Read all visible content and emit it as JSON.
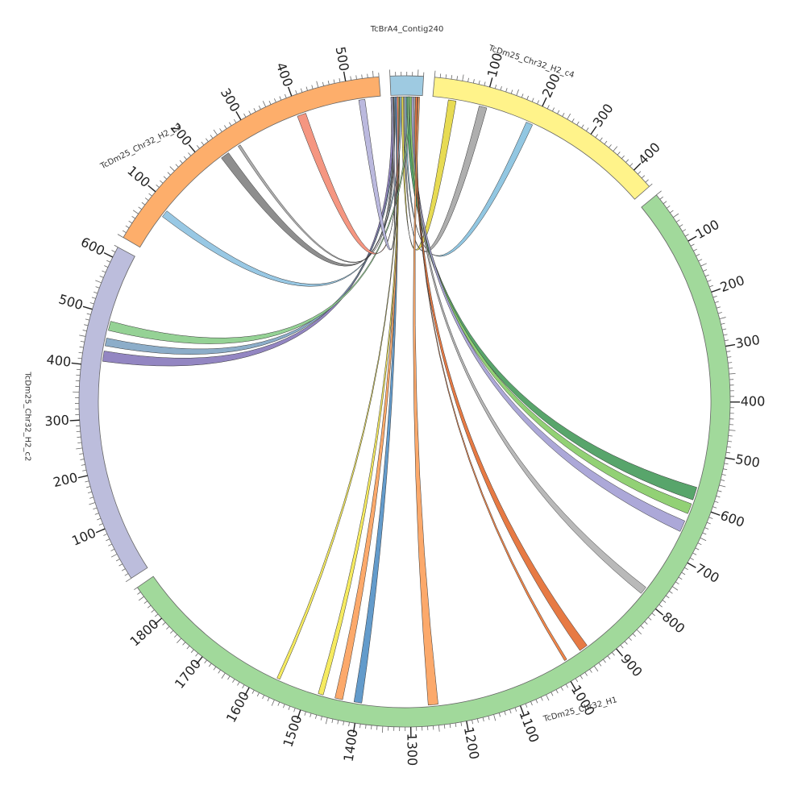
{
  "chart_data": {
    "type": "circos",
    "segments": [
      {
        "name": "TcBrA4_Contig240",
        "length": 60,
        "color": "#9ecae1",
        "label": "TcBrA4_Contig240",
        "tick_labels": []
      },
      {
        "name": "TcDm25_Chr32_H2_c4",
        "length": 440,
        "color": "#fff38a",
        "label": "TcDm25_Chr32_H2_c4",
        "tick_labels": [
          "100",
          "200",
          "300",
          "400"
        ]
      },
      {
        "name": "TcDm25_Chr32_H1",
        "length": 1870,
        "color": "#a1d99b",
        "label": "TcDm25_Chr32_H1",
        "tick_labels": [
          "100",
          "200",
          "300",
          "400",
          "500",
          "600",
          "700",
          "800",
          "900",
          "1000",
          "1100",
          "1200",
          "1300",
          "1400",
          "1500",
          "1600",
          "1700",
          "1800"
        ]
      },
      {
        "name": "TcDm25_Chr32_H2_c2",
        "length": 620,
        "color": "#bcbddc",
        "label": "TcDm25_Chr32_H2_c2",
        "tick_labels": [
          "100",
          "200",
          "300",
          "400",
          "500",
          "600"
        ]
      },
      {
        "name": "TcDm25_Chr32_H2_c3",
        "length": 560,
        "color": "#fdae6b",
        "label": "TcDm25_Chr32_H2_c3",
        "tick_labels": [
          "100",
          "200",
          "300",
          "400",
          "500"
        ]
      }
    ],
    "links": [
      {
        "src": "TcBrA4_Contig240",
        "s1": 20,
        "s2": 24,
        "dst": "TcDm25_Chr32_H2_c4",
        "d1": 30,
        "d2": 45,
        "color": "#e6d94a"
      },
      {
        "src": "TcBrA4_Contig240",
        "s1": 24,
        "s2": 27,
        "dst": "TcDm25_Chr32_H2_c4",
        "d1": 90,
        "d2": 105,
        "color": "#aaaaaa"
      },
      {
        "src": "TcBrA4_Contig240",
        "s1": 27,
        "s2": 30,
        "dst": "TcDm25_Chr32_H2_c4",
        "d1": 185,
        "d2": 198,
        "color": "#8cc4e0"
      },
      {
        "src": "TcBrA4_Contig240",
        "s1": 30,
        "s2": 36,
        "dst": "TcDm25_Chr32_H1",
        "d1": 565,
        "d2": 590,
        "color": "#4fa063"
      },
      {
        "src": "TcBrA4_Contig240",
        "s1": 36,
        "s2": 40,
        "dst": "TcDm25_Chr32_H1",
        "d1": 598,
        "d2": 618,
        "color": "#8ccf6e"
      },
      {
        "src": "TcBrA4_Contig240",
        "s1": 40,
        "s2": 44,
        "dst": "TcDm25_Chr32_H1",
        "d1": 633,
        "d2": 655,
        "color": "#a8a3d6"
      },
      {
        "src": "TcBrA4_Contig240",
        "s1": 44,
        "s2": 47,
        "dst": "TcDm25_Chr32_H1",
        "d1": 780,
        "d2": 795,
        "color": "#b5b5b5"
      },
      {
        "src": "TcBrA4_Contig240",
        "s1": 47,
        "s2": 51,
        "dst": "TcDm25_Chr32_H1",
        "d1": 938,
        "d2": 955,
        "color": "#e6733a"
      },
      {
        "src": "TcBrA4_Contig240",
        "s1": 51,
        "s2": 52,
        "dst": "TcDm25_Chr32_H1",
        "d1": 985,
        "d2": 990,
        "color": "#f08040"
      },
      {
        "src": "TcBrA4_Contig240",
        "s1": 52,
        "s2": 55,
        "dst": "TcDm25_Chr32_H1",
        "d1": 1247,
        "d2": 1266,
        "color": "#fca463"
      },
      {
        "src": "TcBrA4_Contig240",
        "s1": 8,
        "s2": 11,
        "dst": "TcDm25_Chr32_H1",
        "d1": 1393,
        "d2": 1408,
        "color": "#5b96c8"
      },
      {
        "src": "TcBrA4_Contig240",
        "s1": 11,
        "s2": 14,
        "dst": "TcDm25_Chr32_H1",
        "d1": 1430,
        "d2": 1445,
        "color": "#fca463"
      },
      {
        "src": "TcBrA4_Contig240",
        "s1": 14,
        "s2": 16,
        "dst": "TcDm25_Chr32_H1",
        "d1": 1468,
        "d2": 1478,
        "color": "#f5ea57"
      },
      {
        "src": "TcBrA4_Contig240",
        "s1": 16,
        "s2": 17,
        "dst": "TcDm25_Chr32_H1",
        "d1": 1556,
        "d2": 1562,
        "color": "#f5ea57"
      },
      {
        "src": "TcBrA4_Contig240",
        "s1": 0,
        "s2": 5,
        "dst": "TcDm25_Chr32_H2_c2",
        "d1": 410,
        "d2": 430,
        "color": "#8d7fbf"
      },
      {
        "src": "TcBrA4_Contig240",
        "s1": 5,
        "s2": 8,
        "dst": "TcDm25_Chr32_H2_c2",
        "d1": 440,
        "d2": 455,
        "color": "#86a9c6"
      },
      {
        "src": "TcBrA4_Contig240",
        "s1": 33,
        "s2": 36,
        "dst": "TcDm25_Chr32_H2_c2",
        "d1": 470,
        "d2": 488,
        "color": "#8fd08f"
      },
      {
        "src": "TcBrA4_Contig240",
        "s1": 17,
        "s2": 20,
        "dst": "TcDm25_Chr32_H2_c3",
        "d1": 72,
        "d2": 86,
        "color": "#92c5e3"
      },
      {
        "src": "TcBrA4_Contig240",
        "s1": 2,
        "s2": 5,
        "dst": "TcDm25_Chr32_H2_c3",
        "d1": 231,
        "d2": 248,
        "color": "#888888"
      },
      {
        "src": "TcBrA4_Contig240",
        "s1": 5,
        "s2": 6,
        "dst": "TcDm25_Chr32_H2_c3",
        "d1": 270,
        "d2": 275,
        "color": "#aaaaaa"
      },
      {
        "src": "TcBrA4_Contig240",
        "s1": 11,
        "s2": 14,
        "dst": "TcDm25_Chr32_H2_c3",
        "d1": 397,
        "d2": 414,
        "color": "#f4907a"
      },
      {
        "src": "TcBrA4_Contig240",
        "s1": 0,
        "s2": 3,
        "dst": "TcDm25_Chr32_H2_c3",
        "d1": 518,
        "d2": 530,
        "color": "#b7b5dc"
      }
    ]
  }
}
